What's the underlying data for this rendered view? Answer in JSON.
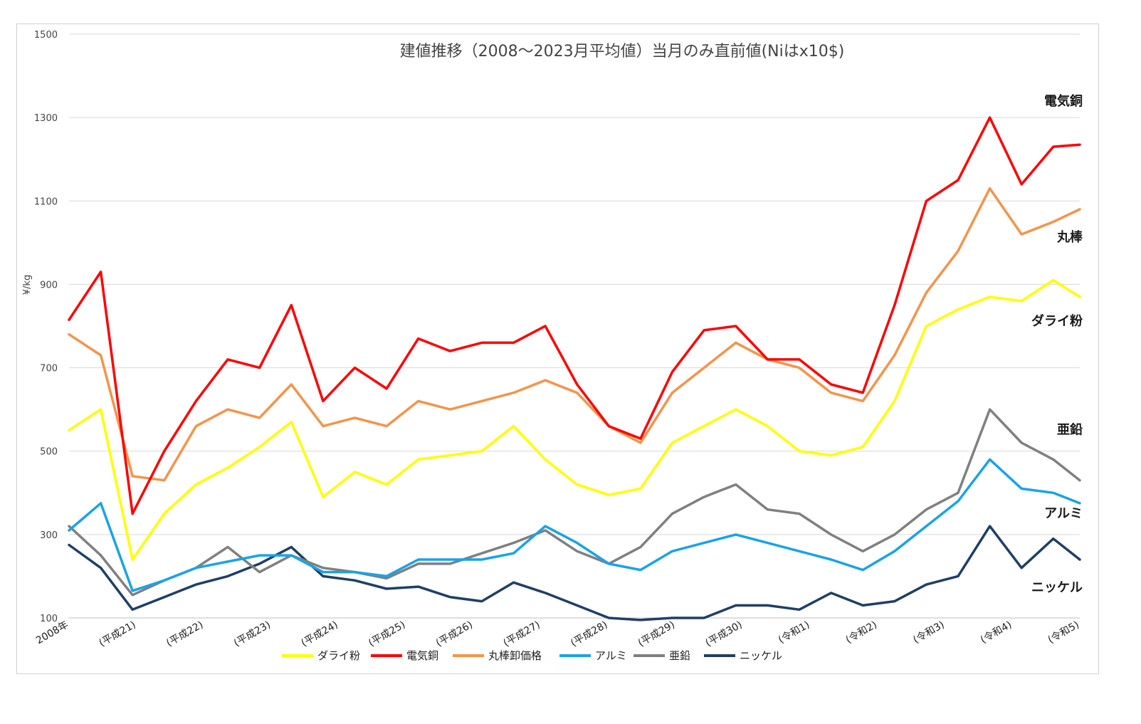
{
  "chart_data": {
    "type": "line",
    "title": "建値推移（2008～2023月平均値）当月のみ直前値(Niはx10$)",
    "ylabel": "¥/kg",
    "xlabel": "",
    "ylim": [
      100,
      1500
    ],
    "yticks": [
      100,
      300,
      500,
      700,
      900,
      1100,
      1300,
      1500
    ],
    "grid": true,
    "legend_position": "bottom",
    "categories": [
      "2008年",
      "(平成21)",
      "(平成22)",
      "(平成23)",
      "(平成24)",
      "(平成25)",
      "(平成26)",
      "(平成27)",
      "(平成28)",
      "(平成29)",
      "(平成30)",
      "(令和1)",
      "(令和2)",
      "(令和3)",
      "(令和4)",
      "(令和5)"
    ],
    "x": [
      "2008-01",
      "2008-07",
      "2009-01",
      "2009-07",
      "2010-01",
      "2010-07",
      "2011-01",
      "2011-07",
      "2012-01",
      "2012-07",
      "2013-01",
      "2013-07",
      "2014-01",
      "2014-07",
      "2015-01",
      "2015-07",
      "2016-01",
      "2016-07",
      "2017-01",
      "2017-07",
      "2018-01",
      "2018-07",
      "2019-01",
      "2019-07",
      "2020-01",
      "2020-07",
      "2021-01",
      "2021-07",
      "2022-01",
      "2022-07",
      "2023-01",
      "2023-07",
      "2023-12"
    ],
    "series": [
      {
        "name": "ダライ粉",
        "end_label": "ダライ粉",
        "color": "#ffff00",
        "values": [
          550,
          600,
          240,
          350,
          420,
          460,
          510,
          570,
          390,
          450,
          420,
          480,
          490,
          500,
          560,
          480,
          420,
          395,
          410,
          520,
          560,
          600,
          560,
          500,
          490,
          510,
          620,
          800,
          840,
          870,
          860,
          910,
          870
        ]
      },
      {
        "name": "電気銅",
        "end_label": "電気銅",
        "color": "#ff0000",
        "values": [
          815,
          930,
          350,
          500,
          620,
          720,
          700,
          850,
          620,
          700,
          650,
          770,
          740,
          760,
          760,
          800,
          660,
          560,
          530,
          690,
          790,
          800,
          720,
          720,
          660,
          640,
          850,
          1100,
          1150,
          1300,
          1140,
          1230,
          1235
        ]
      },
      {
        "name": "丸棒卸価格",
        "end_label": "丸棒",
        "color": "#f4944a",
        "values": [
          780,
          730,
          440,
          430,
          560,
          600,
          580,
          660,
          560,
          580,
          560,
          620,
          600,
          620,
          640,
          670,
          640,
          560,
          520,
          640,
          700,
          760,
          720,
          700,
          640,
          620,
          730,
          880,
          980,
          1130,
          1020,
          1050,
          1080
        ]
      },
      {
        "name": "アルミ",
        "end_label": "アルミ",
        "color": "#1aa3e6",
        "values": [
          310,
          375,
          165,
          190,
          220,
          235,
          250,
          250,
          210,
          210,
          200,
          240,
          240,
          240,
          255,
          320,
          280,
          230,
          215,
          260,
          280,
          300,
          280,
          260,
          240,
          215,
          260,
          320,
          380,
          480,
          410,
          400,
          375
        ]
      },
      {
        "name": "亜鉛",
        "end_label": "亜鉛",
        "color": "#808080",
        "values": [
          320,
          250,
          155,
          190,
          220,
          270,
          210,
          250,
          220,
          210,
          195,
          230,
          230,
          255,
          280,
          310,
          260,
          230,
          270,
          350,
          390,
          420,
          360,
          350,
          300,
          260,
          300,
          360,
          400,
          600,
          520,
          480,
          430
        ]
      },
      {
        "name": "ニッケル",
        "end_label": "ニッケル",
        "color": "#1f3f66",
        "values": [
          275,
          220,
          120,
          150,
          180,
          200,
          230,
          270,
          200,
          190,
          170,
          175,
          150,
          140,
          185,
          160,
          130,
          100,
          95,
          100,
          100,
          130,
          130,
          120,
          160,
          130,
          140,
          180,
          200,
          320,
          220,
          290,
          240
        ]
      }
    ]
  }
}
